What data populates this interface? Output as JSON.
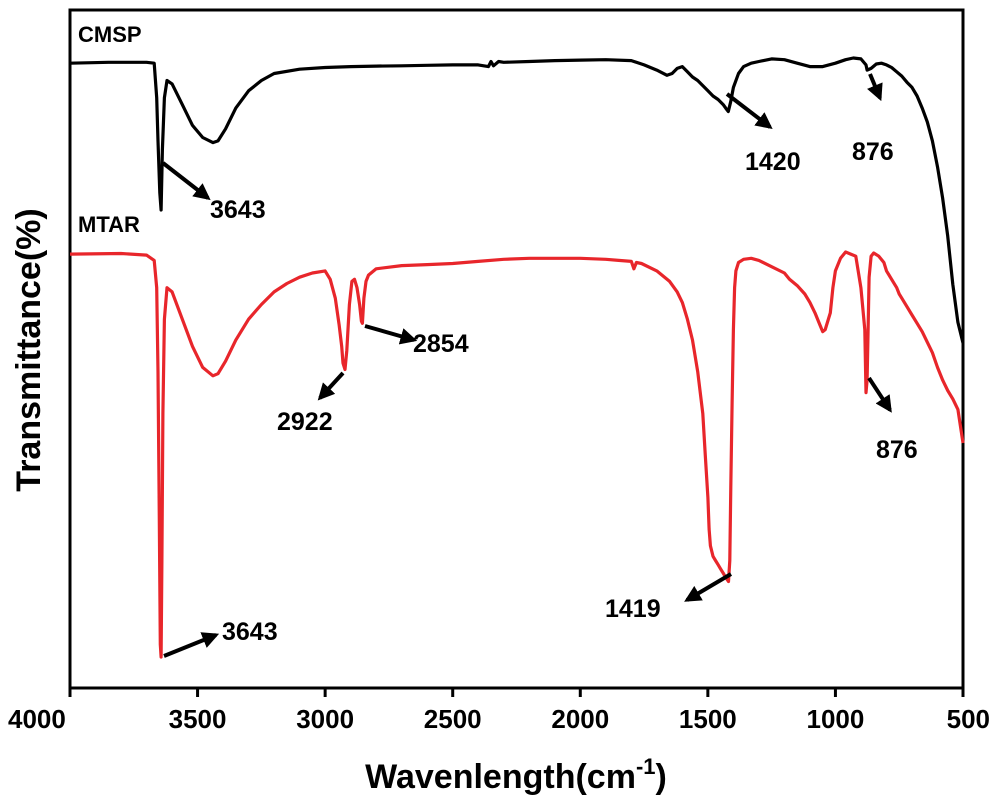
{
  "chart_data": {
    "type": "line",
    "title": "",
    "xlabel": "Wavenlength(cm",
    "xlabel_sup": "-1",
    "xlabel_close": ")",
    "ylabel": "Transmittance(%)",
    "xlim": [
      4000,
      500
    ],
    "x_ticks": [
      "4000",
      "3500",
      "3000",
      "2500",
      "2000",
      "1500",
      "1000",
      "500"
    ],
    "y_ticks_shown": false,
    "series": [
      {
        "name": "CMSP",
        "color": "#000000",
        "x": [
          4000,
          3850,
          3700,
          3670,
          3660,
          3655,
          3648,
          3643,
          3638,
          3630,
          3620,
          3600,
          3560,
          3520,
          3480,
          3440,
          3420,
          3390,
          3350,
          3300,
          3250,
          3200,
          3100,
          3000,
          2900,
          2800,
          2700,
          2600,
          2500,
          2400,
          2360,
          2350,
          2340,
          2320,
          2300,
          2200,
          2100,
          2000,
          1900,
          1800,
          1750,
          1700,
          1660,
          1640,
          1620,
          1600,
          1580,
          1560,
          1540,
          1520,
          1500,
          1480,
          1460,
          1440,
          1430,
          1420,
          1410,
          1400,
          1380,
          1360,
          1330,
          1300,
          1250,
          1200,
          1150,
          1100,
          1050,
          1000,
          960,
          930,
          900,
          880,
          876,
          860,
          840,
          820,
          800,
          780,
          760,
          740,
          720,
          700,
          680,
          660,
          640,
          620,
          600,
          580,
          560,
          540,
          520,
          500
        ],
        "y": [
          90.0,
          90.5,
          90.5,
          90.0,
          70.0,
          45.0,
          15.0,
          5.0,
          40.0,
          70.0,
          80.0,
          78.0,
          66.0,
          54.0,
          47.0,
          44.0,
          45.0,
          52.0,
          64.0,
          74.0,
          80.0,
          84.0,
          86.5,
          87.5,
          88.0,
          88.3,
          88.5,
          88.8,
          89.0,
          89.0,
          88.0,
          91.0,
          88.5,
          91.0,
          90.5,
          91.0,
          91.5,
          91.8,
          92.0,
          91.5,
          89.0,
          86.0,
          83.0,
          84.0,
          87.0,
          88.0,
          85.0,
          82.0,
          80.0,
          77.0,
          74.0,
          71.0,
          69.0,
          66.0,
          64.0,
          62.0,
          68.0,
          76.0,
          84.0,
          88.0,
          90.0,
          91.0,
          92.5,
          92.0,
          90.0,
          88.0,
          88.0,
          90.0,
          92.0,
          93.0,
          92.5,
          89.0,
          86.0,
          87.0,
          89.5,
          90.0,
          89.0,
          87.5,
          85.0,
          82.5,
          79.0,
          76.0,
          71.0,
          64.0,
          56.0,
          45.0,
          30.0,
          12.0,
          -10.0,
          -38.0,
          -60.0,
          -72.0
        ]
      },
      {
        "name": "MTAR",
        "color": "#e8262b",
        "x": [
          4000,
          3800,
          3700,
          3670,
          3660,
          3655,
          3650,
          3646,
          3643,
          3640,
          3636,
          3630,
          3620,
          3600,
          3560,
          3520,
          3480,
          3440,
          3420,
          3390,
          3350,
          3300,
          3250,
          3200,
          3150,
          3100,
          3050,
          3000,
          2980,
          2960,
          2945,
          2935,
          2930,
          2922,
          2915,
          2905,
          2895,
          2885,
          2875,
          2865,
          2858,
          2854,
          2848,
          2840,
          2830,
          2800,
          2700,
          2600,
          2500,
          2400,
          2300,
          2200,
          2100,
          2000,
          1900,
          1850,
          1800,
          1790,
          1780,
          1760,
          1700,
          1650,
          1620,
          1600,
          1580,
          1560,
          1540,
          1520,
          1510,
          1500,
          1495,
          1490,
          1480,
          1470,
          1460,
          1450,
          1440,
          1430,
          1419,
          1414,
          1410,
          1405,
          1400,
          1395,
          1390,
          1380,
          1360,
          1330,
          1300,
          1250,
          1200,
          1180,
          1150,
          1120,
          1100,
          1080,
          1060,
          1050,
          1040,
          1020,
          1010,
          1000,
          980,
          960,
          940,
          920,
          900,
          885,
          880,
          876,
          872,
          868,
          860,
          850,
          830,
          810,
          800,
          780,
          760,
          750,
          740,
          720,
          700,
          680,
          660,
          640,
          620,
          600,
          580,
          560,
          540,
          520,
          500
        ],
        "y": [
          16.0,
          16.3,
          15.5,
          13.0,
          0.0,
          -40.0,
          -110.0,
          -170.0,
          -176.0,
          -130.0,
          -60.0,
          -15.0,
          0.0,
          -2.0,
          -15.0,
          -28.0,
          -38.0,
          -42.0,
          -41.0,
          -35.0,
          -25.0,
          -15.0,
          -8.0,
          -2.0,
          2.0,
          5.0,
          7.0,
          8.0,
          4.0,
          -5.0,
          -18.0,
          -28.0,
          -36.0,
          -39.0,
          -30.0,
          -8.0,
          3.0,
          4.0,
          0.0,
          -8.0,
          -16.0,
          -17.0,
          -5.0,
          3.0,
          6.0,
          9.0,
          10.5,
          11.0,
          11.5,
          12.5,
          13.5,
          14.0,
          14.0,
          14.0,
          13.5,
          13.0,
          12.5,
          9.0,
          12.0,
          11.5,
          8.0,
          3.0,
          -2.0,
          -7.0,
          -15.0,
          -25.0,
          -40.0,
          -60.0,
          -80.0,
          -100.0,
          -115.0,
          -123.0,
          -128.0,
          -130.0,
          -132.0,
          -134.0,
          -136.0,
          -138.0,
          -140.0,
          -130.0,
          -95.0,
          -55.0,
          -20.0,
          0.0,
          8.0,
          12.0,
          13.5,
          14.0,
          13.0,
          10.0,
          7.0,
          4.0,
          1.0,
          -3.0,
          -7.0,
          -12.0,
          -18.0,
          -21.0,
          -20.0,
          -12.0,
          0.0,
          8.0,
          14.0,
          17.0,
          16.0,
          15.0,
          0.0,
          -20.0,
          -50.0,
          -44.0,
          -20.0,
          5.0,
          15.0,
          16.5,
          15.0,
          12.0,
          8.0,
          4.0,
          0.0,
          -3.0,
          -5.0,
          -9.0,
          -13.0,
          -17.0,
          -21.0,
          -26.0,
          -31.0,
          -38.0,
          -44.0,
          -49.0,
          -53.0,
          -58.0,
          -74.0
        ]
      }
    ],
    "annotations": [
      {
        "label": "3643",
        "series": "CMSP"
      },
      {
        "label": "1420",
        "series": "CMSP"
      },
      {
        "label": "876",
        "series": "CMSP"
      },
      {
        "label": "2922",
        "series": "MTAR"
      },
      {
        "label": "2854",
        "series": "MTAR"
      },
      {
        "label": "876",
        "series": "MTAR"
      },
      {
        "label": "1419",
        "series": "MTAR"
      },
      {
        "label": "3643",
        "series": "MTAR"
      }
    ]
  }
}
